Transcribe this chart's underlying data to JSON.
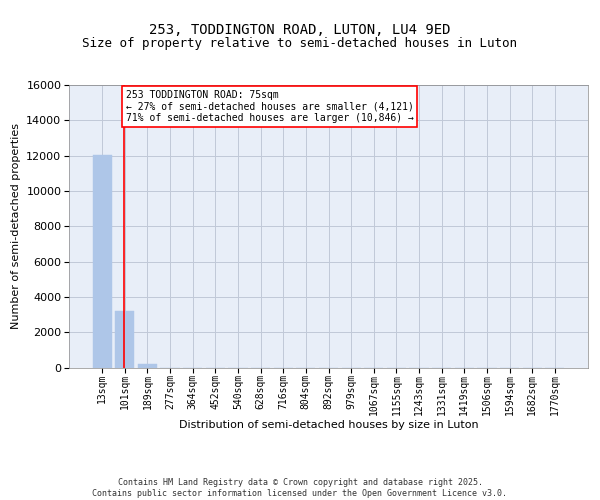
{
  "title1": "253, TODDINGTON ROAD, LUTON, LU4 9ED",
  "title2": "Size of property relative to semi-detached houses in Luton",
  "xlabel": "Distribution of semi-detached houses by size in Luton",
  "ylabel": "Number of semi-detached properties",
  "categories": [
    "13sqm",
    "101sqm",
    "189sqm",
    "277sqm",
    "364sqm",
    "452sqm",
    "540sqm",
    "628sqm",
    "716sqm",
    "804sqm",
    "892sqm",
    "979sqm",
    "1067sqm",
    "1155sqm",
    "1243sqm",
    "1331sqm",
    "1419sqm",
    "1506sqm",
    "1594sqm",
    "1682sqm",
    "1770sqm"
  ],
  "values": [
    12050,
    3200,
    210,
    0,
    0,
    0,
    0,
    0,
    0,
    0,
    0,
    0,
    0,
    0,
    0,
    0,
    0,
    0,
    0,
    0,
    0
  ],
  "bar_color": "#aec6e8",
  "bar_edge_color": "#aec6e8",
  "grid_color": "#c0c8d8",
  "bg_color": "#e8eef8",
  "annotation_text": "253 TODDINGTON ROAD: 75sqm\n← 27% of semi-detached houses are smaller (4,121)\n71% of semi-detached houses are larger (10,846) →",
  "vline_x": 0.95,
  "ylim": [
    0,
    16000
  ],
  "yticks": [
    0,
    2000,
    4000,
    6000,
    8000,
    10000,
    12000,
    14000,
    16000
  ],
  "footer": "Contains HM Land Registry data © Crown copyright and database right 2025.\nContains public sector information licensed under the Open Government Licence v3.0.",
  "title_fontsize": 10,
  "subtitle_fontsize": 9,
  "tick_fontsize": 7,
  "ylabel_fontsize": 8,
  "xlabel_fontsize": 8,
  "footer_fontsize": 6
}
